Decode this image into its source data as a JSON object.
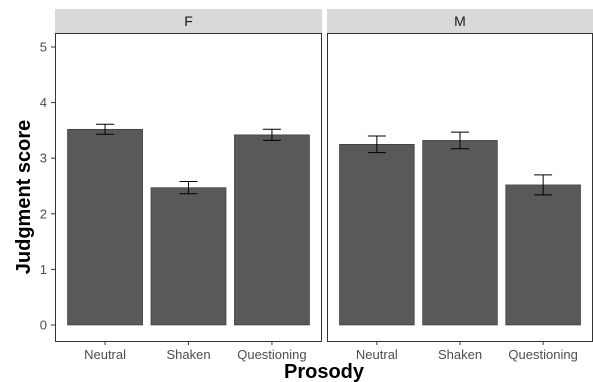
{
  "chart_data": {
    "type": "bar",
    "xlabel": "Prosody",
    "ylabel": "Judgment score",
    "ylim": [
      0,
      5.3
    ],
    "yticks": [
      0,
      1,
      2,
      3,
      4,
      5
    ],
    "grid": false,
    "bar_color": "#595959",
    "strip_color": "#d9d9d9",
    "categories": [
      "Neutral",
      "Shaken",
      "Questioning"
    ],
    "facets": [
      {
        "label": "F",
        "values": [
          3.52,
          2.47,
          3.42
        ],
        "errors": [
          0.09,
          0.11,
          0.1
        ]
      },
      {
        "label": "M",
        "values": [
          3.25,
          3.32,
          2.52
        ],
        "errors": [
          0.15,
          0.15,
          0.18
        ]
      }
    ]
  }
}
